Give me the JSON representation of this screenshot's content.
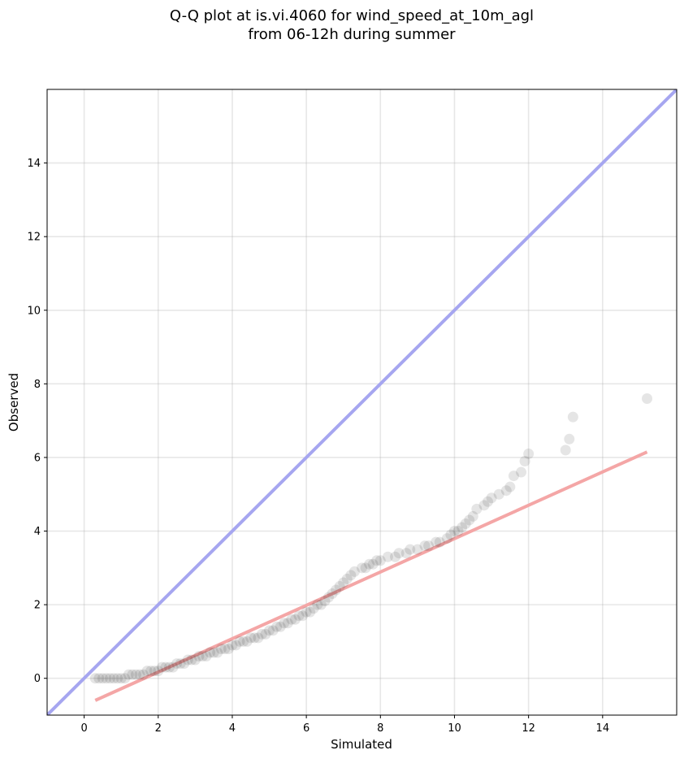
{
  "chart_data": {
    "type": "scatter",
    "title_line1": "Q-Q plot at is.vi.4060 for wind_speed_at_10m_agl",
    "title_line2": "from 06-12h during summer",
    "xlabel": "Simulated",
    "ylabel": "Observed",
    "xlim": [
      -1.0,
      16.0
    ],
    "ylim": [
      -1.0,
      16.0
    ],
    "xticks": [
      "0",
      "2",
      "4",
      "6",
      "8",
      "10",
      "12",
      "14"
    ],
    "yticks": [
      "0",
      "2",
      "4",
      "6",
      "8",
      "10",
      "12",
      "14"
    ],
    "grid": true,
    "legend": "none",
    "identity_line": {
      "color": "#a6a6f0",
      "from": [
        -1.0,
        -1.0
      ],
      "to": [
        16.0,
        16.0
      ]
    },
    "fit_line": {
      "color": "#f4a6a6",
      "from": [
        0.3,
        -0.6
      ],
      "to": [
        15.2,
        6.15
      ]
    },
    "point_color": "#000000",
    "points": [
      [
        0.3,
        0.0
      ],
      [
        0.4,
        0.0
      ],
      [
        0.5,
        0.0
      ],
      [
        0.6,
        0.0
      ],
      [
        0.7,
        0.0
      ],
      [
        0.8,
        0.0
      ],
      [
        0.9,
        0.0
      ],
      [
        1.0,
        0.0
      ],
      [
        1.1,
        0.0
      ],
      [
        1.2,
        0.1
      ],
      [
        1.3,
        0.1
      ],
      [
        1.4,
        0.1
      ],
      [
        1.5,
        0.1
      ],
      [
        1.6,
        0.1
      ],
      [
        1.7,
        0.2
      ],
      [
        1.8,
        0.2
      ],
      [
        1.9,
        0.2
      ],
      [
        2.0,
        0.2
      ],
      [
        2.1,
        0.3
      ],
      [
        2.2,
        0.3
      ],
      [
        2.3,
        0.3
      ],
      [
        2.4,
        0.3
      ],
      [
        2.5,
        0.4
      ],
      [
        2.6,
        0.4
      ],
      [
        2.7,
        0.4
      ],
      [
        2.8,
        0.5
      ],
      [
        2.9,
        0.5
      ],
      [
        3.0,
        0.5
      ],
      [
        3.1,
        0.6
      ],
      [
        3.2,
        0.6
      ],
      [
        3.3,
        0.6
      ],
      [
        3.4,
        0.7
      ],
      [
        3.5,
        0.7
      ],
      [
        3.6,
        0.7
      ],
      [
        3.7,
        0.8
      ],
      [
        3.8,
        0.8
      ],
      [
        3.9,
        0.8
      ],
      [
        4.0,
        0.9
      ],
      [
        4.1,
        0.9
      ],
      [
        4.2,
        1.0
      ],
      [
        4.3,
        1.0
      ],
      [
        4.4,
        1.0
      ],
      [
        4.5,
        1.1
      ],
      [
        4.6,
        1.1
      ],
      [
        4.7,
        1.1
      ],
      [
        4.8,
        1.2
      ],
      [
        4.9,
        1.2
      ],
      [
        5.0,
        1.3
      ],
      [
        5.1,
        1.3
      ],
      [
        5.2,
        1.4
      ],
      [
        5.3,
        1.4
      ],
      [
        5.4,
        1.5
      ],
      [
        5.5,
        1.5
      ],
      [
        5.6,
        1.6
      ],
      [
        5.7,
        1.6
      ],
      [
        5.8,
        1.7
      ],
      [
        5.9,
        1.7
      ],
      [
        6.0,
        1.8
      ],
      [
        6.1,
        1.8
      ],
      [
        6.2,
        1.9
      ],
      [
        6.3,
        2.0
      ],
      [
        6.4,
        2.0
      ],
      [
        6.5,
        2.1
      ],
      [
        6.6,
        2.2
      ],
      [
        6.7,
        2.3
      ],
      [
        6.8,
        2.4
      ],
      [
        6.9,
        2.5
      ],
      [
        7.0,
        2.6
      ],
      [
        7.1,
        2.7
      ],
      [
        7.2,
        2.8
      ],
      [
        7.3,
        2.9
      ],
      [
        7.5,
        3.0
      ],
      [
        7.6,
        3.0
      ],
      [
        7.7,
        3.1
      ],
      [
        7.8,
        3.1
      ],
      [
        7.9,
        3.2
      ],
      [
        8.0,
        3.2
      ],
      [
        8.2,
        3.3
      ],
      [
        8.4,
        3.3
      ],
      [
        8.5,
        3.4
      ],
      [
        8.7,
        3.4
      ],
      [
        8.8,
        3.5
      ],
      [
        9.0,
        3.5
      ],
      [
        9.2,
        3.6
      ],
      [
        9.3,
        3.6
      ],
      [
        9.5,
        3.7
      ],
      [
        9.6,
        3.7
      ],
      [
        9.8,
        3.8
      ],
      [
        9.9,
        3.9
      ],
      [
        10.0,
        4.0
      ],
      [
        10.1,
        4.0
      ],
      [
        10.2,
        4.1
      ],
      [
        10.3,
        4.2
      ],
      [
        10.4,
        4.3
      ],
      [
        10.5,
        4.4
      ],
      [
        10.6,
        4.6
      ],
      [
        10.8,
        4.7
      ],
      [
        10.9,
        4.8
      ],
      [
        11.0,
        4.9
      ],
      [
        11.2,
        5.0
      ],
      [
        11.4,
        5.1
      ],
      [
        11.5,
        5.2
      ],
      [
        11.6,
        5.5
      ],
      [
        11.8,
        5.6
      ],
      [
        11.9,
        5.9
      ],
      [
        12.0,
        6.1
      ],
      [
        13.0,
        6.2
      ],
      [
        13.1,
        6.5
      ],
      [
        13.2,
        7.1
      ],
      [
        15.2,
        7.6
      ]
    ]
  }
}
